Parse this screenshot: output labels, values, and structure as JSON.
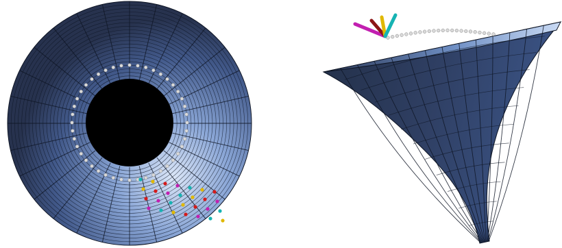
{
  "scene": {
    "background": "#ffffff",
    "views": [
      {
        "id": "top-view",
        "description_shape": "annular-disc-mesh"
      },
      {
        "id": "side-view",
        "description_shape": "horn-surface-mesh"
      }
    ]
  },
  "colors": {
    "mesh_dark": "#2a3552",
    "mesh_mid": "#4a6396",
    "mesh_light": "#c8d8f2",
    "mesh_lines": "#0e1524",
    "hole": "#000000",
    "node_dot": "#d9d9d9",
    "arrow_magenta": "#c21fb0",
    "arrow_darkred": "#8c1616",
    "arrow_yellow": "#e0b800",
    "arrow_cyan": "#16b3b3",
    "arrow_red": "#d41a1a"
  },
  "mesh": {
    "top_view": {
      "radial_divisions": 28,
      "rings": 22
    },
    "side_view": {
      "curve_lines": 14,
      "spine_lines": 12
    }
  },
  "icons": {
    "axis_triad": "axis-triad-icon",
    "load_arrows": "load-arrow-icon",
    "boundary_nodes": "boundary-node-icon"
  }
}
